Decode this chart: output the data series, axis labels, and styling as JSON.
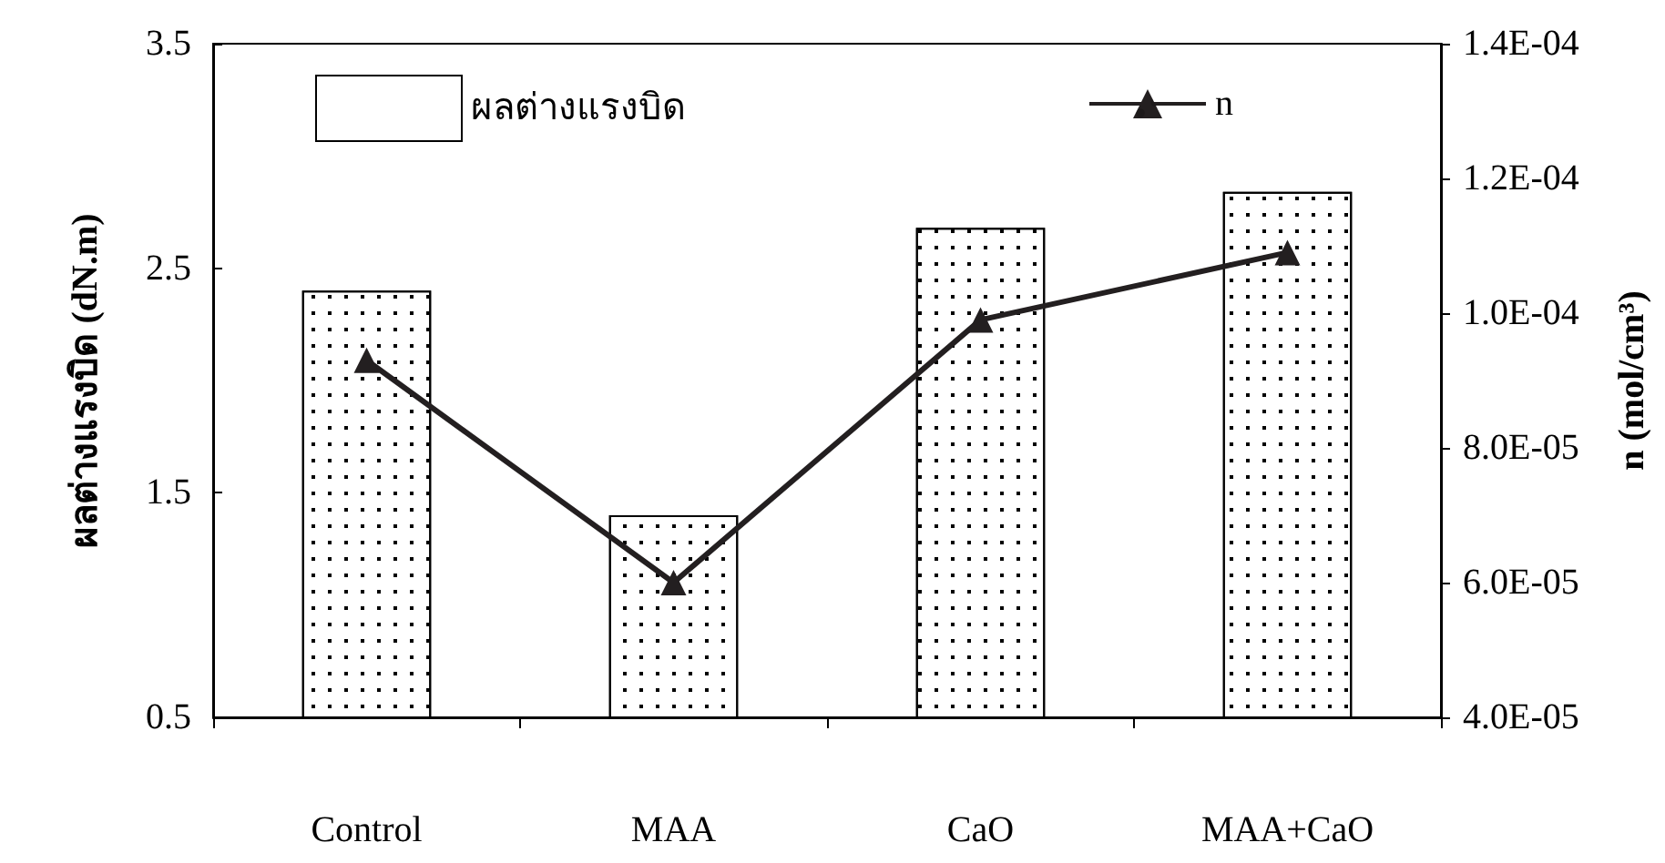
{
  "chart_data": {
    "type": "bar",
    "categories": [
      "Control",
      "MAA",
      "CaO",
      "MAA+CaO"
    ],
    "ylabel": "ผลต่างแรงบิด (dN.m)",
    "y2label": "n (mol/cm³)",
    "ylim": [
      0.5,
      3.5
    ],
    "yticks": [
      0.5,
      1.5,
      2.5,
      3.5
    ],
    "y2lim": [
      4e-05,
      0.00014
    ],
    "y2ticks": [
      {
        "value": 4e-05,
        "label": "4.0E-05"
      },
      {
        "value": 6e-05,
        "label": "6.0E-05"
      },
      {
        "value": 8e-05,
        "label": "8.0E-05"
      },
      {
        "value": 0.0001,
        "label": "1.0E-04"
      },
      {
        "value": 0.00012,
        "label": "1.2E-04"
      },
      {
        "value": 0.00014,
        "label": "1.4E-04"
      }
    ],
    "series": [
      {
        "name": "ผลต่างแรงบิด",
        "color": "#ffffff",
        "values": [
          2.4,
          1.4,
          2.68,
          2.84
        ]
      },
      {
        "name": "n",
        "type": "line",
        "axis": "y2",
        "color": "#231f20",
        "marker": "triangle",
        "line_style": "solid",
        "values": [
          9.3e-05,
          6e-05,
          9.9e-05,
          0.000109
        ]
      }
    ],
    "grid": false,
    "legend": "top"
  }
}
